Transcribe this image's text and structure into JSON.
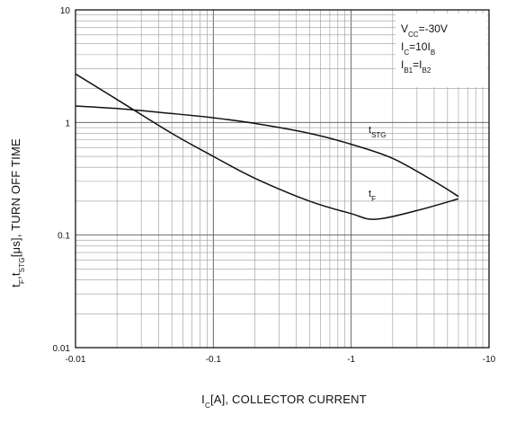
{
  "chart_data": {
    "type": "line",
    "title": "",
    "xlabel": {
      "main": "I",
      "sub": "C",
      "rest": "[A], COLLECTOR CURRENT"
    },
    "ylabel": {
      "p1": "t",
      "s1": "F",
      "p2": ",t",
      "s2": "STG",
      "p3": "[μs], TURN OFF TIME"
    },
    "x_scale": "log",
    "y_scale": "log",
    "x_axis_magnitude_range": [
      0.01,
      10
    ],
    "y_range": [
      0.01,
      10
    ],
    "x_tick_labels": [
      "-0.01",
      "-0.1",
      "-1",
      "-10"
    ],
    "y_tick_labels": [
      "10",
      "1",
      "0.1",
      "0.01"
    ],
    "grid": true,
    "conditions": [
      {
        "pre": "V",
        "sub": "CC",
        "post": "=-30V"
      },
      {
        "pre": "I",
        "sub": "C",
        "post": "=10I",
        "sub2": "B"
      },
      {
        "pre": "I",
        "sub": "B1",
        "post": "=I",
        "sub2": "B2"
      }
    ],
    "series": [
      {
        "name": {
          "pre": "t",
          "sub": "STG"
        },
        "color": "#111111",
        "x": [
          -0.01,
          -0.02,
          -0.05,
          -0.1,
          -0.2,
          -0.5,
          -1,
          -2,
          -4,
          -6
        ],
        "y": [
          1.4,
          1.33,
          1.2,
          1.1,
          0.98,
          0.8,
          0.64,
          0.48,
          0.3,
          0.22
        ]
      },
      {
        "name": {
          "pre": "t",
          "sub": "F"
        },
        "color": "#111111",
        "x": [
          -0.01,
          -0.02,
          -0.05,
          -0.1,
          -0.2,
          -0.5,
          -1,
          -1.5,
          -3,
          -6
        ],
        "y": [
          2.7,
          1.6,
          0.8,
          0.5,
          0.32,
          0.2,
          0.155,
          0.138,
          0.165,
          0.21
        ]
      }
    ]
  }
}
